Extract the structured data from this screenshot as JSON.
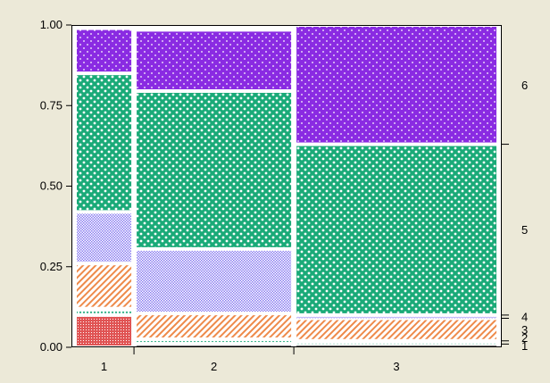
{
  "chart_data": {
    "type": "mosaic",
    "title": "",
    "xlabel": "",
    "ylabel": "",
    "ylim": [
      0,
      1
    ],
    "y_ticks": [
      "0.00",
      "0.25",
      "0.50",
      "0.75",
      "1.00"
    ],
    "categories": [
      "1",
      "2",
      "3"
    ],
    "column_widths": [
      0.12,
      0.34,
      0.44
    ],
    "levels": [
      "1",
      "2",
      "3",
      "4",
      "5",
      "6"
    ],
    "series": [
      {
        "name": "1",
        "values": [
          0.1,
          0.01,
          0.01
        ]
      },
      {
        "name": "2",
        "values": [
          0.02,
          0.015,
          0.01
        ]
      },
      {
        "name": "3",
        "values": [
          0.14,
          0.08,
          0.07
        ]
      },
      {
        "name": "4",
        "values": [
          0.16,
          0.2,
          0.01
        ]
      },
      {
        "name": "5",
        "values": [
          0.43,
          0.49,
          0.53
        ]
      },
      {
        "name": "6",
        "values": [
          0.14,
          0.19,
          0.37
        ]
      }
    ],
    "colors": {
      "1": "#e05454",
      "2": "#3ab58c",
      "3": "#ee8a4a",
      "4": "#9a8cf0",
      "5": "#1aaa78",
      "6": "#8a2be2",
      "level1_bar": "#111111"
    },
    "patterns": {
      "1": "crosshatch-dots",
      "2": "dots",
      "3": "diagonal-stripes",
      "4": "fine-dots",
      "5": "white-dots",
      "6": "white-dots"
    },
    "plot_background": "#ffffff",
    "page_background": "#ece9d8",
    "legend": "right-axis labels",
    "grid": false
  }
}
